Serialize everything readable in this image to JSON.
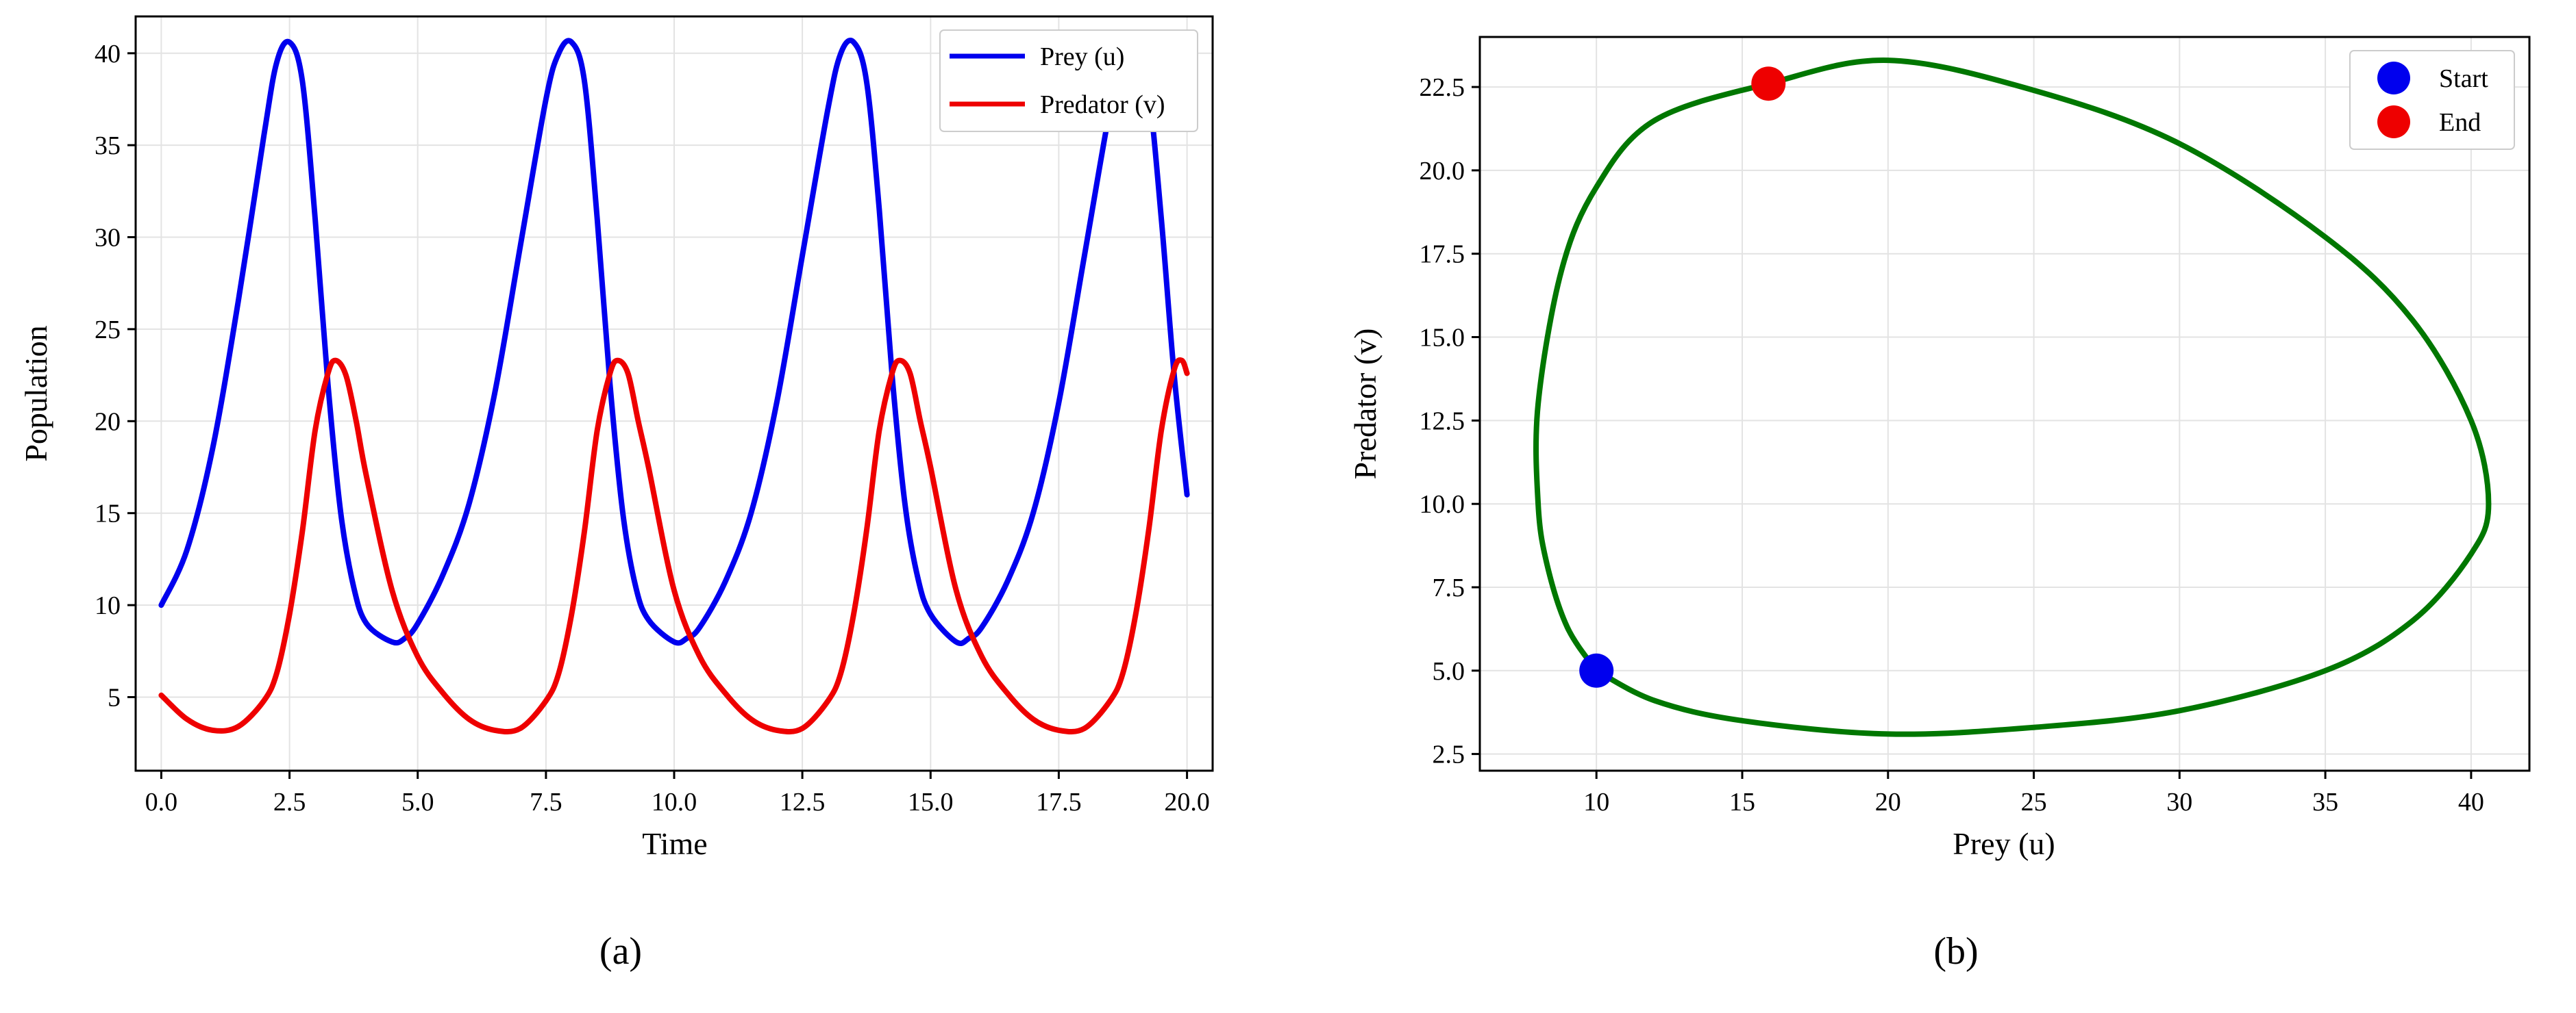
{
  "chart_data": [
    {
      "type": "line",
      "caption": "(a)",
      "xlabel": "Time",
      "ylabel": "Population",
      "xlim": [
        -0.5,
        20.5
      ],
      "ylim": [
        1,
        42
      ],
      "xticks": [
        0.0,
        2.5,
        5.0,
        7.5,
        10.0,
        12.5,
        15.0,
        17.5,
        20.0
      ],
      "xtick_labels": [
        "0.0",
        "2.5",
        "5.0",
        "7.5",
        "10.0",
        "12.5",
        "15.0",
        "17.5",
        "20.0"
      ],
      "yticks": [
        5,
        10,
        15,
        20,
        25,
        30,
        35,
        40
      ],
      "ytick_labels": [
        "5",
        "10",
        "15",
        "20",
        "25",
        "30",
        "35",
        "40"
      ],
      "grid": true,
      "legend_position": "top-right",
      "series": [
        {
          "name": "Prey (u)",
          "color": "#0000ee",
          "x": [
            0.0,
            0.5,
            1.0,
            1.5,
            2.0,
            2.25,
            2.5,
            2.75,
            3.0,
            3.25,
            3.5,
            3.75,
            4.0,
            4.5,
            4.75,
            5.0,
            5.5,
            6.0,
            6.5,
            7.0,
            7.5,
            7.75,
            8.0,
            8.25,
            8.5,
            8.75,
            9.0,
            9.25,
            9.5,
            10.0,
            10.25,
            10.5,
            11.0,
            11.5,
            12.0,
            12.5,
            13.0,
            13.25,
            13.5,
            13.75,
            14.0,
            14.25,
            14.5,
            14.75,
            15.0,
            15.5,
            15.75,
            16.0,
            16.5,
            17.0,
            17.5,
            18.0,
            18.5,
            18.75,
            19.0,
            19.25,
            19.5,
            19.75,
            20.0
          ],
          "values": [
            10.0,
            13.0,
            18.5,
            26.5,
            35.5,
            39.5,
            40.6,
            38.5,
            31.0,
            22.0,
            15.0,
            11.0,
            9.0,
            8.0,
            8.2,
            9.0,
            11.7,
            15.5,
            21.5,
            29.5,
            37.5,
            40.0,
            40.6,
            38.5,
            31.0,
            22.0,
            15.0,
            11.0,
            9.2,
            8.0,
            8.2,
            8.8,
            11.3,
            15.0,
            21.0,
            29.0,
            37.0,
            40.0,
            40.6,
            38.5,
            31.5,
            22.5,
            15.5,
            11.5,
            9.5,
            8.0,
            8.2,
            8.8,
            11.3,
            15.0,
            21.0,
            29.0,
            37.0,
            40.0,
            40.6,
            38.0,
            31.0,
            22.5,
            16.0
          ]
        },
        {
          "name": "Predator (v)",
          "color": "#ee0000",
          "x": [
            0.0,
            0.5,
            1.0,
            1.5,
            2.0,
            2.25,
            2.5,
            2.75,
            3.0,
            3.25,
            3.4,
            3.6,
            3.8,
            4.0,
            4.5,
            5.0,
            5.5,
            6.0,
            6.5,
            7.0,
            7.5,
            7.75,
            8.0,
            8.25,
            8.5,
            8.75,
            8.9,
            9.1,
            9.3,
            9.5,
            10.0,
            10.5,
            11.0,
            11.5,
            12.0,
            12.5,
            13.0,
            13.25,
            13.5,
            13.75,
            14.0,
            14.25,
            14.4,
            14.6,
            14.8,
            15.0,
            15.5,
            16.0,
            16.5,
            17.0,
            17.5,
            18.0,
            18.5,
            18.75,
            19.0,
            19.25,
            19.5,
            19.75,
            19.9,
            20.0
          ],
          "values": [
            5.1,
            3.8,
            3.2,
            3.4,
            4.8,
            6.3,
            9.5,
            14.0,
            19.5,
            22.6,
            23.3,
            22.5,
            20.0,
            17.0,
            10.8,
            7.2,
            5.2,
            3.8,
            3.2,
            3.3,
            4.8,
            6.3,
            9.5,
            14.0,
            19.5,
            22.6,
            23.3,
            22.6,
            20.0,
            17.5,
            10.8,
            7.2,
            5.2,
            3.8,
            3.2,
            3.3,
            4.8,
            6.3,
            9.5,
            14.0,
            19.5,
            22.6,
            23.3,
            22.6,
            20.0,
            17.5,
            10.8,
            7.2,
            5.2,
            3.8,
            3.2,
            3.3,
            4.8,
            6.3,
            9.5,
            14.0,
            19.5,
            22.8,
            23.3,
            22.6
          ]
        }
      ]
    },
    {
      "type": "line",
      "caption": "(b)",
      "xlabel": "Prey (u)",
      "ylabel": "Predator (v)",
      "xlim": [
        6.0,
        42.0
      ],
      "ylim": [
        2.0,
        24.0
      ],
      "xticks": [
        10,
        15,
        20,
        25,
        30,
        35,
        40
      ],
      "xtick_labels": [
        "10",
        "15",
        "20",
        "25",
        "30",
        "35",
        "40"
      ],
      "yticks": [
        2.5,
        5.0,
        7.5,
        10.0,
        12.5,
        15.0,
        17.5,
        20.0,
        22.5
      ],
      "ytick_labels": [
        "2.5",
        "5.0",
        "7.5",
        "10.0",
        "12.5",
        "15.0",
        "17.5",
        "20.0",
        "22.5"
      ],
      "grid": true,
      "legend_position": "top-right",
      "series": [
        {
          "name": "",
          "color": "#007700",
          "x": [
            10.0,
            12.0,
            15.0,
            20.0,
            25.0,
            30.0,
            35.0,
            38.0,
            40.0,
            40.6,
            40.0,
            38.0,
            35.0,
            30.0,
            25.0,
            20.0,
            15.9,
            12.0,
            10.0,
            8.8,
            8.0,
            8.0,
            8.3,
            9.0,
            10.0
          ],
          "values": [
            5.0,
            4.1,
            3.5,
            3.1,
            3.3,
            3.8,
            5.0,
            6.5,
            8.5,
            10.0,
            12.5,
            15.5,
            18.0,
            20.8,
            22.4,
            23.3,
            22.6,
            21.5,
            19.5,
            17.0,
            13.0,
            10.0,
            8.2,
            6.3,
            5.0
          ]
        }
      ],
      "markers": [
        {
          "name": "Start",
          "color": "#0000ee",
          "x": 10.0,
          "y": 5.0
        },
        {
          "name": "End",
          "color": "#ee0000",
          "x": 15.9,
          "y": 22.6
        }
      ]
    }
  ]
}
